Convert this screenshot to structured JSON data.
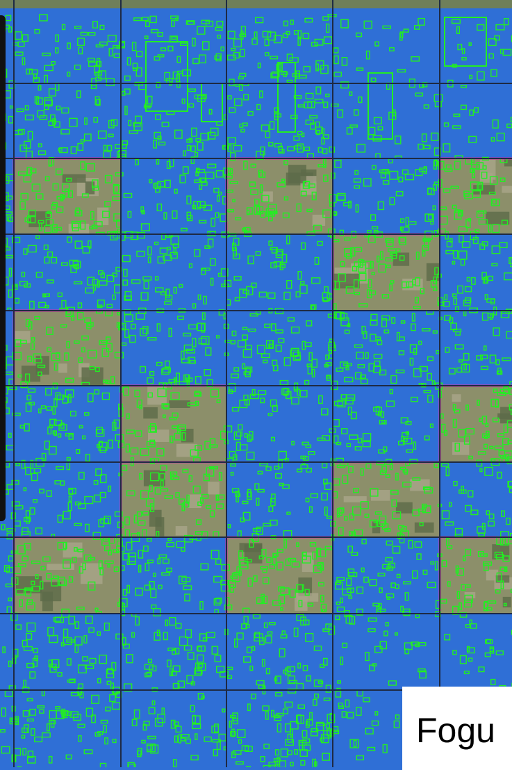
{
  "map": {
    "base_color": "#2f6fd6",
    "grid_line_color": "#1e2a44",
    "feature_color": "#22ee22",
    "tile_border_color": "#d62ea8",
    "imagery_tile_color": "#8c8f6a",
    "top_strip_color": "#6f7f5a",
    "imagery_tiles": [
      {
        "row": 2,
        "col": 0
      },
      {
        "row": 2,
        "col": 2
      },
      {
        "row": 2,
        "col": 4
      },
      {
        "row": 3,
        "col": 3
      },
      {
        "row": 4,
        "col": 0
      },
      {
        "row": 5,
        "col": 1
      },
      {
        "row": 5,
        "col": 4
      },
      {
        "row": 6,
        "col": 1
      },
      {
        "row": 6,
        "col": 3
      },
      {
        "row": 7,
        "col": 0
      },
      {
        "row": 7,
        "col": 2
      },
      {
        "row": 7,
        "col": 4
      }
    ]
  },
  "side_panel": {
    "color": "#111111"
  },
  "caption": {
    "text": "Fogu"
  }
}
